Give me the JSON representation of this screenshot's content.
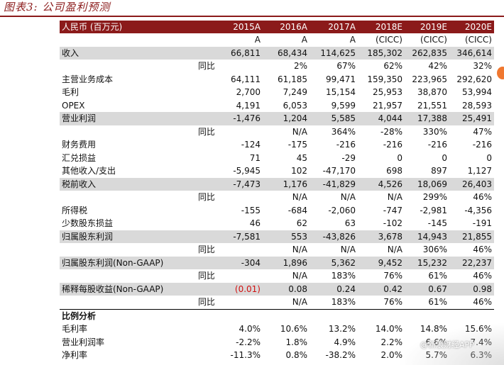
{
  "title": "图表3: 公司盈利预测",
  "watermark": "@新浪财经APP",
  "colors": {
    "header_bg": "#8b1a1a",
    "shade": "#d9d9d9",
    "negative_highlight": "#d01010"
  },
  "header": {
    "label": "人民币 (百万元)",
    "years": [
      "2015A",
      "2016A",
      "2017A",
      "2018E",
      "2019E",
      "2020E"
    ]
  },
  "source_row": [
    "A",
    "A",
    "A",
    "(CICC)",
    "(CICC)",
    "(CICC)"
  ],
  "rows": [
    {
      "label": "收入",
      "values": [
        "66,811",
        "68,434",
        "114,625",
        "185,302",
        "262,835",
        "346,614"
      ],
      "style": "shade"
    },
    {
      "label": "同比",
      "values": [
        "",
        "2%",
        "67%",
        "62%",
        "42%",
        "32%"
      ],
      "style": "sub"
    },
    {
      "label": "主营业务成本",
      "values": [
        "64,111",
        "61,185",
        "99,471",
        "159,350",
        "223,965",
        "292,620"
      ],
      "style": ""
    },
    {
      "label": "毛利",
      "values": [
        "2,700",
        "7,249",
        "15,154",
        "25,953",
        "38,870",
        "53,994"
      ],
      "style": ""
    },
    {
      "label": "OPEX",
      "values": [
        "4,191",
        "6,053",
        "9,599",
        "21,957",
        "21,551",
        "28,593"
      ],
      "style": ""
    },
    {
      "label": "营业利润",
      "values": [
        "-1,476",
        "1,204",
        "5,585",
        "4,044",
        "17,388",
        "25,491"
      ],
      "style": "shade"
    },
    {
      "label": "同比",
      "values": [
        "",
        "N/A",
        "364%",
        "-28%",
        "330%",
        "47%"
      ],
      "style": "sub"
    },
    {
      "label": "财务费用",
      "values": [
        "-124",
        "-175",
        "-216",
        "-216",
        "-216",
        "-216"
      ],
      "style": ""
    },
    {
      "label": "汇兑损益",
      "values": [
        "71",
        "45",
        "-29",
        "0",
        "0",
        "0"
      ],
      "style": ""
    },
    {
      "label": "其他收入/支出",
      "values": [
        "-5,945",
        "102",
        "-47,170",
        "698",
        "897",
        "1,127"
      ],
      "style": ""
    },
    {
      "label": "税前收入",
      "values": [
        "-7,473",
        "1,176",
        "-41,829",
        "4,526",
        "18,069",
        "26,403"
      ],
      "style": "shade"
    },
    {
      "label": "同比",
      "values": [
        "",
        "N/A",
        "N/A",
        "N/A",
        "299%",
        "46%"
      ],
      "style": "sub"
    },
    {
      "label": "所得税",
      "values": [
        "-155",
        "-684",
        "-2,060",
        "-747",
        "-2,981",
        "-4,356"
      ],
      "style": ""
    },
    {
      "label": "少数股东损益",
      "values": [
        "46",
        "62",
        "63",
        "-102",
        "-145",
        "-191"
      ],
      "style": ""
    },
    {
      "label": "归属股东利润",
      "values": [
        "-7,581",
        "553",
        "-43,826",
        "3,678",
        "14,943",
        "21,855"
      ],
      "style": "shade"
    },
    {
      "label": "同比",
      "values": [
        "",
        "N/A",
        "N/A",
        "N/A",
        "306%",
        "46%"
      ],
      "style": "sub"
    },
    {
      "label": "归属股东利润(Non-GAAP)",
      "values": [
        "-304",
        "1,896",
        "5,362",
        "9,452",
        "15,232",
        "22,237"
      ],
      "style": "shade"
    },
    {
      "label": "同比",
      "values": [
        "",
        "N/A",
        "183%",
        "76%",
        "61%",
        "46%"
      ],
      "style": "sub"
    },
    {
      "label": "稀释每股收益(Non-GAAP)",
      "values": [
        "(0.01)",
        "0.08",
        "0.24",
        "0.42",
        "0.67",
        "0.98"
      ],
      "style": "shade"
    },
    {
      "label": "同比",
      "values": [
        "",
        "N/A",
        "183%",
        "76%",
        "61%",
        "46%"
      ],
      "style": "sub"
    }
  ],
  "ratio_section": {
    "title": "比例分析",
    "rows": [
      {
        "label": "毛利率",
        "values": [
          "4.0%",
          "10.6%",
          "13.2%",
          "14.0%",
          "14.8%",
          "15.6%"
        ]
      },
      {
        "label": "营业利润率",
        "values": [
          "-2.2%",
          "1.8%",
          "4.9%",
          "2.2%",
          "6.6%",
          "7.4%"
        ]
      },
      {
        "label": "净利率",
        "values": [
          "-11.3%",
          "0.8%",
          "-38.2%",
          "2.0%",
          "5.7%",
          "6.3%"
        ]
      }
    ]
  }
}
